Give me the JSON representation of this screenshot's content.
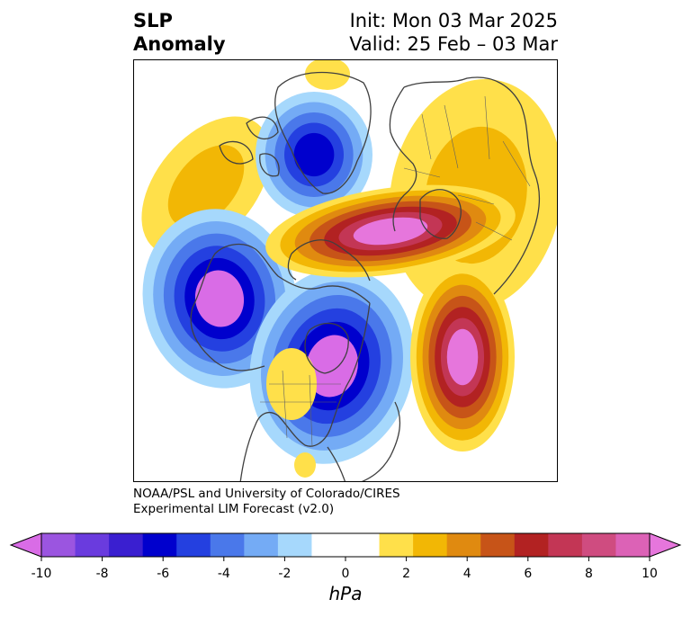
{
  "title": {
    "left_line1": "SLP",
    "left_line2": "Anomaly",
    "right_line1": "Init: Mon 03 Mar 2025",
    "right_line2": "Valid: 25 Feb – 03 Mar"
  },
  "credit": {
    "line1": "NOAA/PSL and University of Colorado/CIRES",
    "line2": "Experimental LIM Forecast (v2.0)"
  },
  "colorbar": {
    "unit": "hPa",
    "min": -10,
    "max": 10,
    "tick_labels": [
      "-10",
      "-8",
      "-6",
      "-4",
      "-2",
      "0",
      "2",
      "4",
      "6",
      "8",
      "10"
    ],
    "tick_values": [
      -10,
      -8,
      -6,
      -4,
      -2,
      0,
      2,
      4,
      6,
      8,
      10
    ],
    "colors": [
      "#9b55e0",
      "#6a3bde",
      "#3a1fd0",
      "#0000cd",
      "#2440e0",
      "#4a78ea",
      "#74abf5",
      "#a6d8fc",
      "#ffffff",
      "#ffffff",
      "#ffe04a",
      "#f2b705",
      "#e08a10",
      "#c75418",
      "#b22222",
      "#c33655",
      "#cf4c80",
      "#dc62b6"
    ],
    "under_color": "#d96ce6",
    "over_color": "#e676dc"
  },
  "map": {
    "projection": "north-polar-stereographic",
    "colors": {
      "neg_outer": "#a6d8fc",
      "neg_2": "#74abf5",
      "neg_3": "#4a78ea",
      "neg_4": "#2440e0",
      "neg_5": "#0000cd",
      "neg_core": "#d96ce6",
      "pos_outer": "#ffe04a",
      "pos_2": "#f2b705",
      "pos_3": "#e08a10",
      "pos_4": "#c75418",
      "pos_5": "#b22222",
      "pos_6": "#c33655",
      "pos_core": "#e676dc",
      "coast": "#404040"
    }
  }
}
